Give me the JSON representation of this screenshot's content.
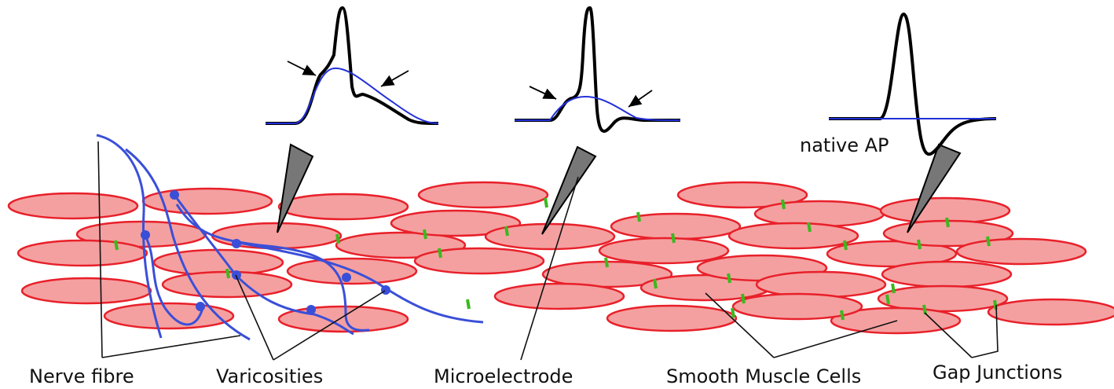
{
  "labels": {
    "native_ap": "native AP",
    "nerve_fibre": "Nerve fibre",
    "varicosities": "Varicosities",
    "microelectrode": "Microelectrode",
    "smooth_muscle_cells": "Smooth Muscle Cells",
    "gap_junctions": "Gap Junctions"
  }
}
